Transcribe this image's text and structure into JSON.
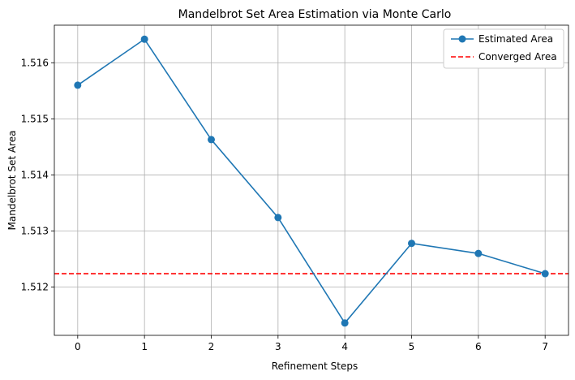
{
  "chart_data": {
    "type": "line",
    "title": "Mandelbrot Set Area Estimation via Monte Carlo",
    "xlabel": "Refinement Steps",
    "ylabel": "Mandelbrot Set Area",
    "x": [
      0,
      1,
      2,
      3,
      4,
      5,
      6,
      7
    ],
    "xticks": [
      "0",
      "1",
      "2",
      "3",
      "4",
      "5",
      "6",
      "7"
    ],
    "yticks": [
      "1.512",
      "1.513",
      "1.514",
      "1.515",
      "1.516"
    ],
    "xlim": [
      -0.35,
      7.35
    ],
    "ylim": [
      1.51114,
      1.51667
    ],
    "series": [
      {
        "name": "Estimated Area",
        "values": [
          1.5156,
          1.51642,
          1.51463,
          1.51324,
          1.51136,
          1.51278,
          1.5126,
          1.51224
        ],
        "color": "#1f77b4",
        "marker": "circle"
      }
    ],
    "reference_line": {
      "name": "Converged Area",
      "value": 1.51224,
      "color": "#ff0000",
      "style": "dashed"
    },
    "grid": true,
    "legend_position": "top-right"
  }
}
